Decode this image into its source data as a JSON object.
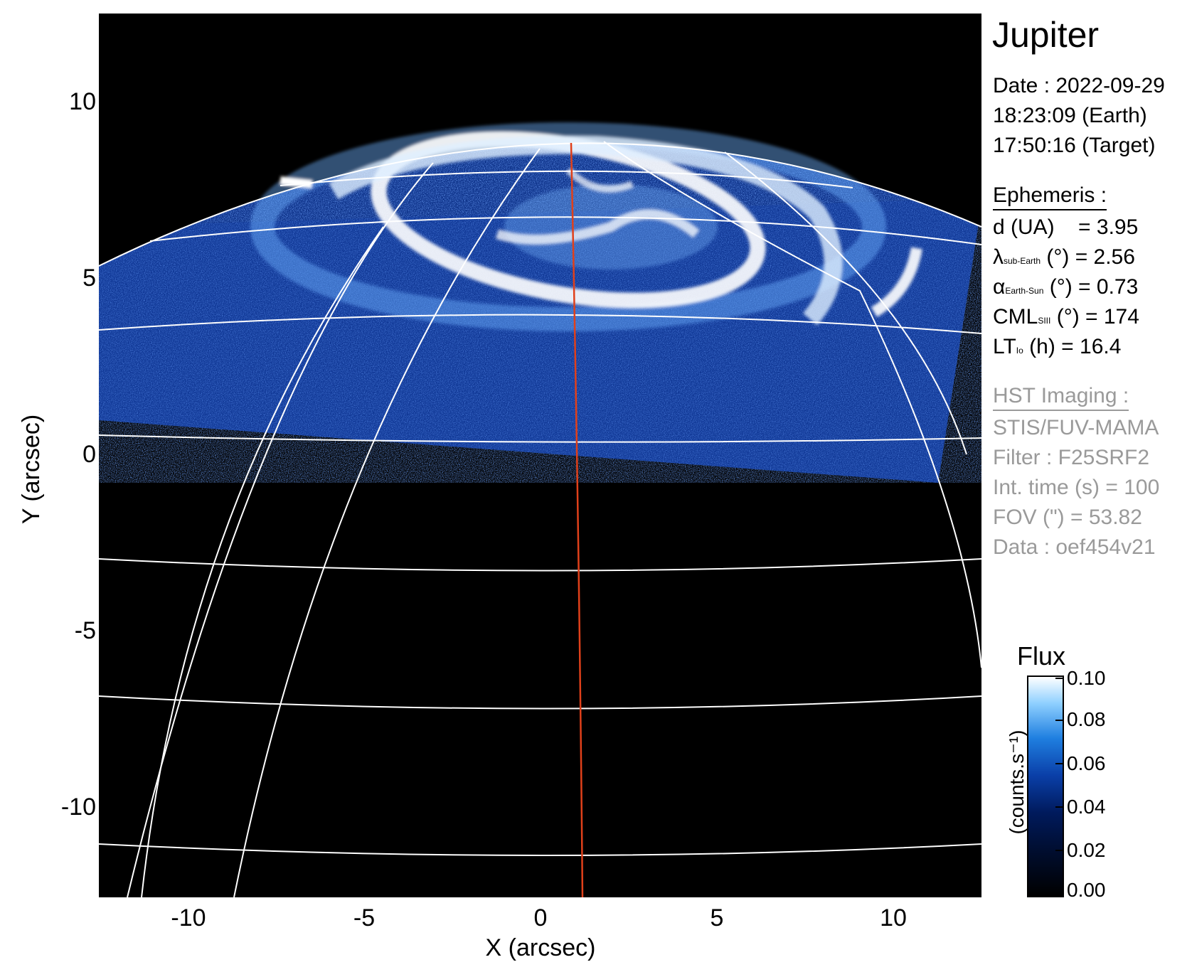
{
  "image": {
    "title": "Jupiter",
    "xlabel": "X (arcsec)",
    "ylabel": "Y (arcsec)",
    "x_ticks": [
      "-10",
      "-5",
      "0",
      "5",
      "10"
    ],
    "y_ticks": [
      "10",
      "5",
      "0",
      "-5",
      "-10"
    ],
    "date_line": "Date : 2022-09-29",
    "earth_time": "18:23:09 (Earth)",
    "target_time": "17:50:16 (Target)"
  },
  "ephemeris": {
    "heading": "Ephemeris :",
    "d_label": "d (UA)",
    "d_value": "= 3.95",
    "lambda_symbol": "λ",
    "lambda_sub": "sub-Earth",
    "lambda_rest": "(°) = 2.56",
    "alpha_symbol": "α",
    "alpha_sub": "Earth-Sun",
    "alpha_rest": "(°) = 0.73",
    "cml_symbol": "CML",
    "cml_sub": "SIII",
    "cml_rest": "(°) = 174",
    "lt_symbol": "LT",
    "lt_sub": "Io",
    "lt_rest": "(h) = 16.4"
  },
  "hst": {
    "heading": "HST Imaging :",
    "instrument": "STIS/FUV-MAMA",
    "filter": "Filter : F25SRF2",
    "int_time": "Int. time (s) = 100",
    "fov": "FOV (\") = 53.82",
    "data": "Data : oef454v21"
  },
  "colorbar": {
    "title": "Flux",
    "label": "(counts.s⁻¹)",
    "ticks": [
      "0.10",
      "0.08",
      "0.06",
      "0.04",
      "0.02",
      "0.00"
    ]
  },
  "colors": {
    "grid": "#ffffff",
    "meridian": "#e0401a",
    "background": "#000000",
    "emission": "#1a4fb8"
  }
}
